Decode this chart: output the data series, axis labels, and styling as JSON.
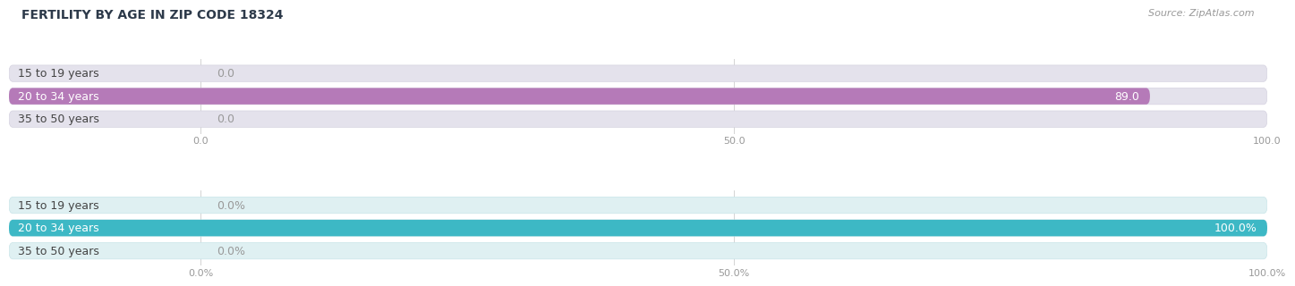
{
  "title": "FERTILITY BY AGE IN ZIP CODE 18324",
  "source": "Source: ZipAtlas.com",
  "top_chart": {
    "categories": [
      "15 to 19 years",
      "20 to 34 years",
      "35 to 50 years"
    ],
    "values": [
      0.0,
      89.0,
      0.0
    ],
    "bar_color": "#b57ab8",
    "bar_bg_color": "#e4e2ec",
    "bar_bg_border": "#d5d2e0",
    "xlim": [
      0,
      100
    ],
    "xticks": [
      0.0,
      50.0,
      100.0
    ],
    "label_inside_color": "#ffffff",
    "label_outside_color": "#999999",
    "value_threshold": 50
  },
  "bottom_chart": {
    "categories": [
      "15 to 19 years",
      "20 to 34 years",
      "35 to 50 years"
    ],
    "values": [
      0.0,
      100.0,
      0.0
    ],
    "bar_color": "#3db8c5",
    "bar_bg_color": "#dff0f2",
    "bar_bg_border": "#c8e4e8",
    "xlim": [
      0,
      100
    ],
    "xticks": [
      0.0,
      50.0,
      100.0
    ],
    "label_inside_color": "#ffffff",
    "label_outside_color": "#999999",
    "value_threshold": 50
  },
  "title_fontsize": 10,
  "source_fontsize": 8,
  "cat_label_fontsize": 9,
  "value_label_fontsize": 9,
  "tick_fontsize": 8,
  "title_color": "#2d3a4a",
  "source_color": "#999999",
  "background_color": "#ffffff",
  "bar_height": 0.72,
  "cat_label_color": "#444444",
  "ylabel_color": "#555555"
}
